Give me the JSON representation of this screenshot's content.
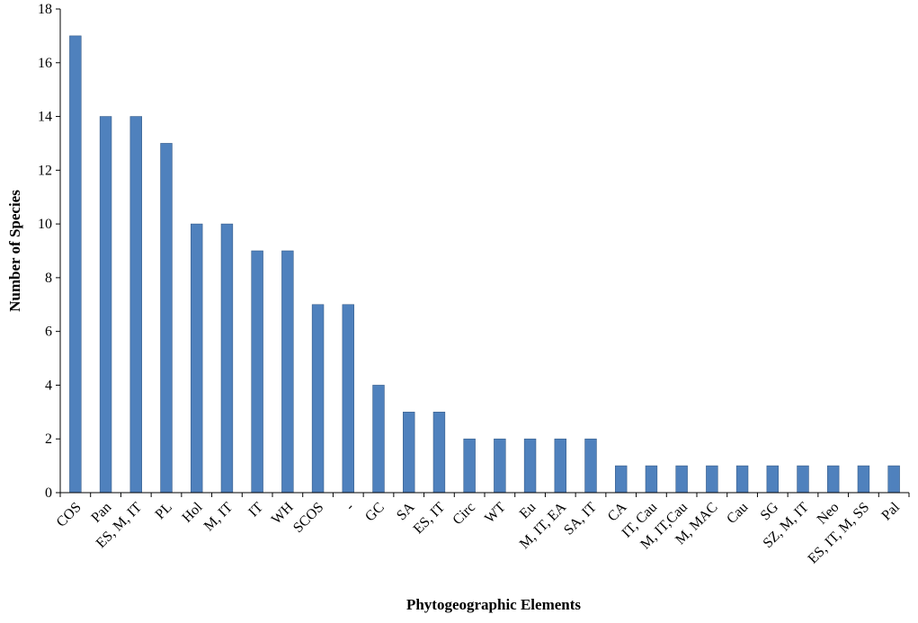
{
  "chart_data": {
    "type": "bar",
    "title": "",
    "xlabel": "Phytogeographic Elements",
    "ylabel": "Number of Species",
    "ylim": [
      0,
      18
    ],
    "yticks": [
      0,
      2,
      4,
      6,
      8,
      10,
      12,
      14,
      16,
      18
    ],
    "grid": false,
    "legend": "none",
    "bar_color": "#4f81bd",
    "categories": [
      "COS",
      "Pan",
      "ES, M, IT",
      "PL",
      "Hol",
      "M, IT",
      "IT",
      "WH",
      "SCOS",
      "-",
      "GC",
      "SA",
      "ES, IT",
      "Circ",
      "WT",
      "Eu",
      "M, IT, EA",
      "SA, IT",
      "CA",
      "IT, Cau",
      "M, IT,Cau",
      "M, MAC",
      "Cau",
      "SG",
      "SZ, M, IT",
      "Neo",
      "ES, IT, M, SS",
      "Pal"
    ],
    "values": [
      17,
      14,
      14,
      13,
      10,
      10,
      9,
      9,
      7,
      7,
      4,
      3,
      3,
      2,
      2,
      2,
      2,
      2,
      1,
      1,
      1,
      1,
      1,
      1,
      1,
      1,
      1,
      1
    ]
  }
}
